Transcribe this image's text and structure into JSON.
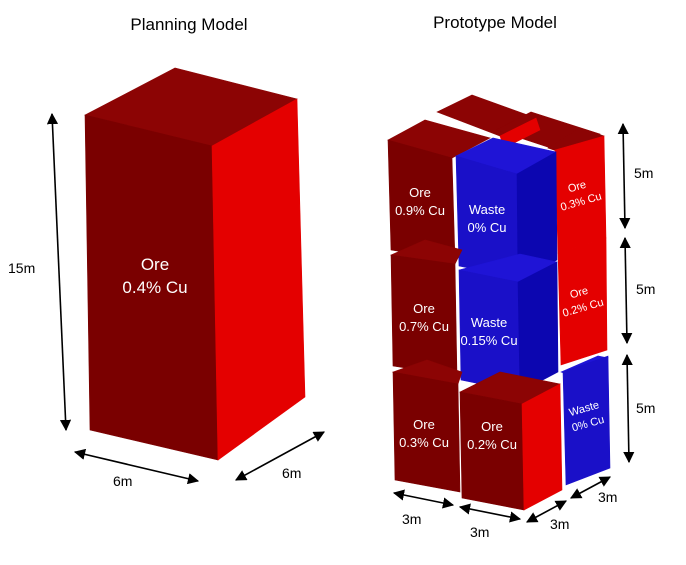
{
  "colors": {
    "ore_front": "#7a0000",
    "ore_top": "#8c0404",
    "ore_side": "#e40000",
    "waste_front": "#1a10c8",
    "waste_top": "#1f14d6",
    "waste_side": "#0c06b0"
  },
  "planning": {
    "title": "Planning Model",
    "label_line1": "Ore",
    "label_line2": "0.4% Cu",
    "dim_height": "15m",
    "dim_width": "6m",
    "dim_depth": "6m"
  },
  "prototype": {
    "title": "Prototype Model",
    "dims": {
      "height_top": "5m",
      "height_mid": "5m",
      "height_bottom": "5m",
      "width_left": "3m",
      "width_mid": "3m",
      "depth_front": "3m",
      "depth_back": "3m"
    },
    "blocks": {
      "top_left": {
        "line1": "Ore",
        "line2": "0.9% Cu",
        "material": "ore"
      },
      "top_mid": {
        "line1": "Waste",
        "line2": "0% Cu",
        "material": "waste"
      },
      "top_right": {
        "line1": "Ore",
        "line2": "0.3% Cu",
        "material": "ore"
      },
      "mid_left": {
        "line1": "Ore",
        "line2": "0.7% Cu",
        "material": "ore"
      },
      "mid_mid": {
        "line1": "Waste",
        "line2": "0.15% Cu",
        "material": "waste"
      },
      "mid_right": {
        "line1": "Ore",
        "line2": "0.2% Cu",
        "material": "ore"
      },
      "bottom_left": {
        "line1": "Ore",
        "line2": "0.3% Cu",
        "material": "ore"
      },
      "bottom_mid": {
        "line1": "Ore",
        "line2": "0.2% Cu",
        "material": "ore"
      },
      "bottom_right": {
        "line1": "Waste",
        "line2": "0% Cu",
        "material": "waste"
      }
    }
  }
}
